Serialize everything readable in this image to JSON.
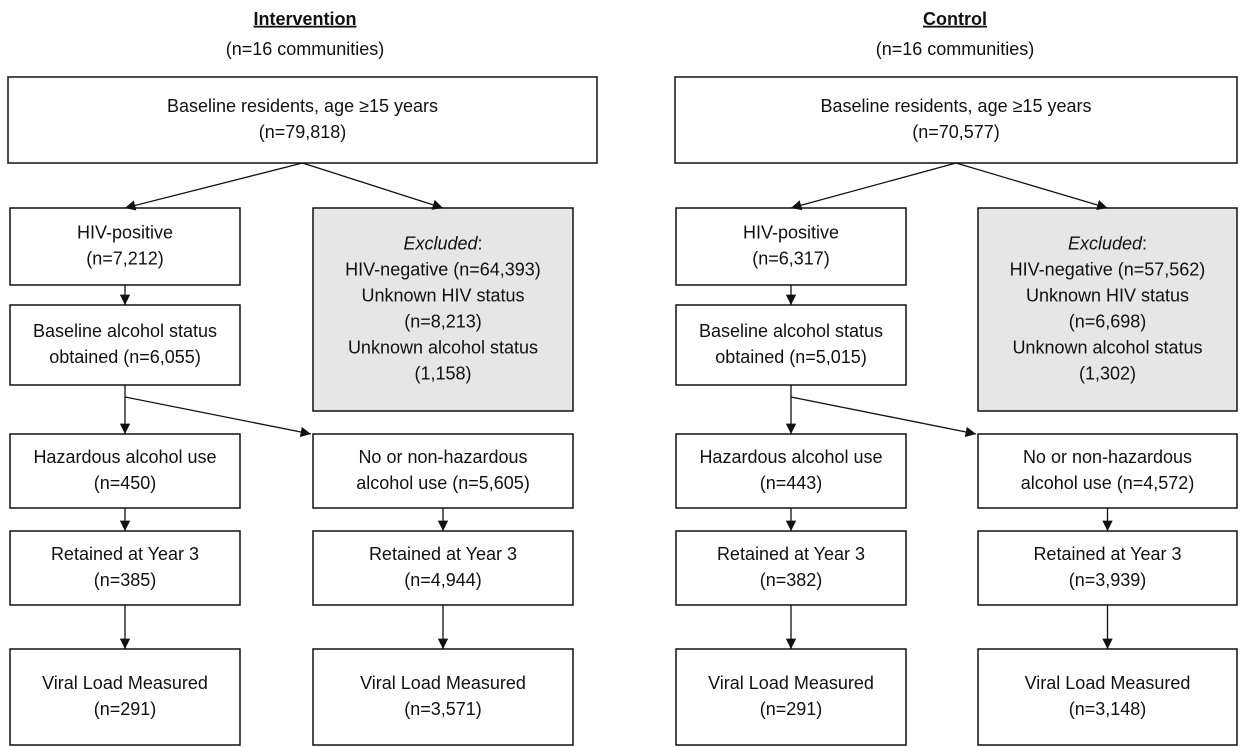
{
  "arms": [
    {
      "title": "Intervention",
      "subtitle": "(n=16 communities)",
      "nodes": [
        {
          "lines": [
            "Baseline residents, age ≥15 years",
            "(n=79,818)"
          ]
        },
        {
          "lines": [
            "HIV-positive",
            "(n=7,212)"
          ]
        },
        {
          "lines": [
            "Baseline alcohol status",
            "obtained (n=6,055)"
          ]
        },
        {
          "lines": [
            "Hazardous alcohol use",
            "(n=450)"
          ]
        },
        {
          "lines": [
            "No or non-hazardous",
            "alcohol use (n=5,605)"
          ]
        },
        {
          "lines": [
            "Retained at Year 3",
            "(n=385)"
          ]
        },
        {
          "lines": [
            "Retained at Year 3",
            "(n=4,944)"
          ]
        },
        {
          "lines": [
            "Viral Load Measured",
            "(n=291)"
          ]
        },
        {
          "lines": [
            "Viral Load Measured",
            "(n=3,571)"
          ]
        }
      ],
      "excluded": {
        "heading": "Excluded",
        "heading_punct": ":",
        "lines": [
          "HIV-negative (n=64,393)",
          "Unknown HIV status",
          "(n=8,213)",
          "Unknown alcohol status",
          "(1,158)"
        ]
      }
    },
    {
      "title": "Control",
      "subtitle": "(n=16 communities)",
      "nodes": [
        {
          "lines": [
            "Baseline residents, age ≥15 years",
            "(n=70,577)"
          ]
        },
        {
          "lines": [
            "HIV-positive",
            "(n=6,317)"
          ]
        },
        {
          "lines": [
            "Baseline alcohol status",
            "obtained (n=5,015)"
          ]
        },
        {
          "lines": [
            "Hazardous alcohol use",
            "(n=443)"
          ]
        },
        {
          "lines": [
            "No or non-hazardous",
            "alcohol use (n=4,572)"
          ]
        },
        {
          "lines": [
            "Retained at Year 3",
            "(n=382)"
          ]
        },
        {
          "lines": [
            "Retained at Year 3",
            "(n=3,939)"
          ]
        },
        {
          "lines": [
            "Viral Load Measured",
            "(n=291)"
          ]
        },
        {
          "lines": [
            "Viral Load Measured",
            "(n=3,148)"
          ]
        }
      ],
      "excluded": {
        "heading": "Excluded",
        "heading_punct": ":",
        "lines": [
          "HIV-negative (n=57,562)",
          "Unknown HIV status",
          "(n=6,698)",
          "Unknown alcohol status",
          "(1,302)"
        ]
      }
    }
  ]
}
